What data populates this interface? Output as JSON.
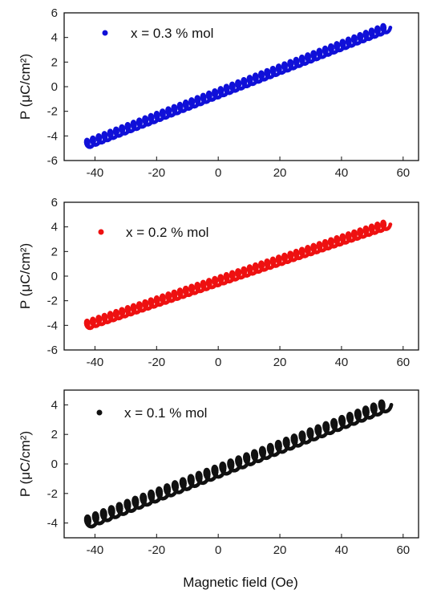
{
  "x_axis_title": "Magnetic field (Oe)",
  "chart_data": [
    {
      "type": "scatter",
      "legend": "x = 0.3 % mol",
      "ylabel": "P (μC/cm²)",
      "color": "#1010d8",
      "xlim": [
        -50,
        65
      ],
      "ylim": [
        -6,
        6
      ],
      "xticks": [
        -40,
        -20,
        0,
        20,
        40,
        60
      ],
      "yticks": [
        -6,
        -4,
        -2,
        0,
        2,
        4,
        6
      ],
      "x_range": [
        -43,
        55
      ],
      "y_range": [
        -4.7,
        4.8
      ],
      "oscillation_amplitude": 0.35,
      "oscillation_cycles": 52
    },
    {
      "type": "scatter",
      "legend": "x = 0.2 % mol",
      "ylabel": "P (μC/cm²)",
      "color": "#ee1111",
      "xlim": [
        -50,
        65
      ],
      "ylim": [
        -6,
        6
      ],
      "xticks": [
        -40,
        -20,
        0,
        20,
        40,
        60
      ],
      "yticks": [
        -6,
        -4,
        -2,
        0,
        2,
        4,
        6
      ],
      "x_range": [
        -43,
        55
      ],
      "y_range": [
        -4.0,
        4.2
      ],
      "oscillation_amplitude": 0.35,
      "oscillation_cycles": 52
    },
    {
      "type": "scatter",
      "legend": "x = 0.1 % mol",
      "ylabel": "P (μC/cm²)",
      "color": "#111111",
      "xlim": [
        -50,
        65
      ],
      "ylim": [
        -5,
        5
      ],
      "xticks": [
        -40,
        -20,
        0,
        20,
        40,
        60
      ],
      "yticks": [
        -4,
        -2,
        0,
        2,
        4
      ],
      "x_range": [
        -43,
        55
      ],
      "y_range": [
        -4.0,
        4.0
      ],
      "oscillation_amplitude": 0.4,
      "oscillation_cycles": 38
    }
  ]
}
